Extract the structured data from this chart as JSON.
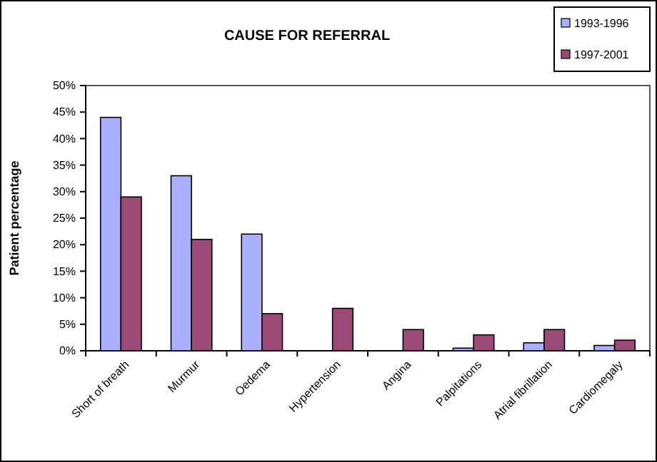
{
  "chart_data": {
    "type": "bar",
    "title": "CAUSE FOR REFERRAL",
    "ylabel": "Patient percentage",
    "categories": [
      "Short of breath",
      "Murmur",
      "Oedema",
      "Hypertension",
      "Angina",
      "Palpitations",
      "Atrial fibrillation",
      "Cardiomegaly"
    ],
    "series": [
      {
        "name": "1993-1996",
        "color": "#aab0ff",
        "values": [
          44,
          33,
          22,
          null,
          null,
          0.5,
          1.5,
          1
        ]
      },
      {
        "name": "1997-2001",
        "color": "#9b4a78",
        "values": [
          29,
          21,
          7,
          8,
          4,
          3,
          4,
          2
        ]
      }
    ],
    "ylim": [
      0,
      50
    ],
    "yticks": [
      {
        "value": 0,
        "label": "0%"
      },
      {
        "value": 5,
        "label": "5%"
      },
      {
        "value": 10,
        "label": "10%"
      },
      {
        "value": 15,
        "label": "15%"
      },
      {
        "value": 20,
        "label": "20%"
      },
      {
        "value": 25,
        "label": "25%"
      },
      {
        "value": 30,
        "label": "30%"
      },
      {
        "value": 35,
        "label": "35%"
      },
      {
        "value": 40,
        "label": "40%"
      },
      {
        "value": 45,
        "label": "45%"
      },
      {
        "value": 50,
        "label": "50%"
      }
    ],
    "grid": false,
    "legend": "top right"
  }
}
